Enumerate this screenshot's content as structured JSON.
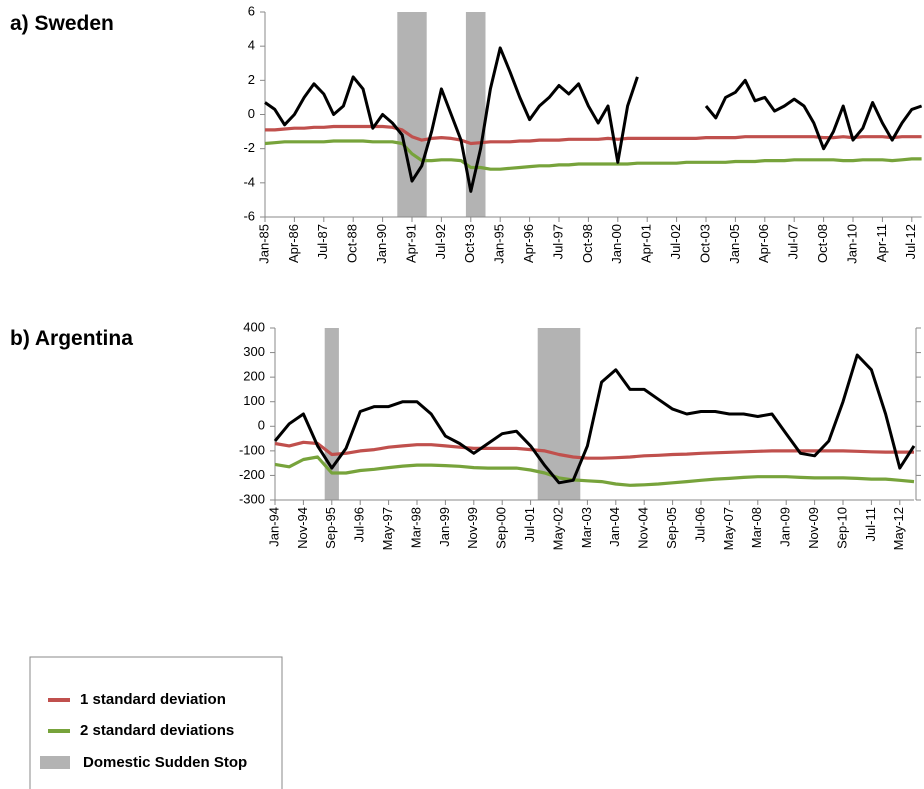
{
  "chart_data": [
    {
      "type": "line",
      "title": "a) Sweden",
      "categories": [
        "Jan-85",
        null,
        null,
        "Apr-86",
        null,
        null,
        "Jul-87",
        null,
        null,
        "Oct-88",
        null,
        null,
        "Jan-90",
        null,
        null,
        "Apr-91",
        null,
        null,
        "Jul-92",
        null,
        null,
        "Oct-93",
        null,
        null,
        "Jan-95",
        null,
        null,
        "Apr-96",
        null,
        null,
        "Jul-97",
        null,
        null,
        "Oct-98",
        null,
        null,
        "Jan-00",
        null,
        null,
        "Apr-01",
        null,
        null,
        "Jul-02",
        null,
        null,
        "Oct-03",
        null,
        null,
        "Jan-05",
        null,
        null,
        "Apr-06",
        null,
        null,
        "Jul-07",
        null,
        null,
        "Oct-08",
        null,
        null,
        "Jan-10",
        null,
        null,
        "Apr-11",
        null,
        null,
        "Jul-12",
        null
      ],
      "series": [
        {
          "color": "#000000",
          "values": [
            0.7,
            0.3,
            -0.6,
            0.0,
            1.0,
            1.8,
            1.2,
            0.0,
            0.5,
            2.2,
            1.5,
            -0.8,
            0.0,
            -0.5,
            -1.2,
            -3.9,
            -3.0,
            -1.0,
            1.5,
            0.0,
            -1.5,
            -4.5,
            -2.0,
            1.5,
            3.9,
            2.5,
            1.0,
            -0.3,
            0.5,
            1.0,
            1.7,
            1.2,
            1.8,
            0.5,
            -0.5,
            0.5,
            -2.8,
            0.5,
            2.2,
            null,
            null,
            null,
            null,
            null,
            null,
            0.5,
            -0.2,
            1.0,
            1.3,
            2.0,
            0.8,
            1.0,
            0.2,
            0.5,
            0.9,
            0.5,
            -0.5,
            -2.0,
            -1.0,
            0.5,
            -1.5,
            -0.8,
            0.7,
            -0.5,
            -1.5,
            -0.5,
            0.3,
            0.5
          ]
        },
        {
          "name": "1 standard deviation",
          "color": "#c0504d",
          "values": [
            -0.9,
            -0.9,
            -0.85,
            -0.8,
            -0.8,
            -0.75,
            -0.75,
            -0.7,
            -0.7,
            -0.7,
            -0.7,
            -0.7,
            -0.7,
            -0.75,
            -0.9,
            -1.3,
            -1.5,
            -1.4,
            -1.35,
            -1.4,
            -1.5,
            -1.7,
            -1.65,
            -1.6,
            -1.6,
            -1.6,
            -1.55,
            -1.55,
            -1.5,
            -1.5,
            -1.5,
            -1.45,
            -1.45,
            -1.45,
            -1.45,
            -1.4,
            -1.45,
            -1.4,
            -1.4,
            -1.4,
            -1.4,
            -1.4,
            -1.4,
            -1.4,
            -1.4,
            -1.35,
            -1.35,
            -1.35,
            -1.35,
            -1.3,
            -1.3,
            -1.3,
            -1.3,
            -1.3,
            -1.3,
            -1.3,
            -1.3,
            -1.35,
            -1.35,
            -1.3,
            -1.35,
            -1.3,
            -1.3,
            -1.3,
            -1.35,
            -1.3,
            -1.3,
            -1.3
          ]
        },
        {
          "name": "2 standard deviations",
          "color": "#77a33b",
          "values": [
            -1.7,
            -1.65,
            -1.6,
            -1.6,
            -1.6,
            -1.6,
            -1.6,
            -1.55,
            -1.55,
            -1.55,
            -1.55,
            -1.6,
            -1.6,
            -1.6,
            -1.7,
            -2.3,
            -2.7,
            -2.7,
            -2.65,
            -2.65,
            -2.7,
            -3.1,
            -3.1,
            -3.2,
            -3.2,
            -3.15,
            -3.1,
            -3.05,
            -3.0,
            -3.0,
            -2.95,
            -2.95,
            -2.9,
            -2.9,
            -2.9,
            -2.9,
            -2.9,
            -2.9,
            -2.85,
            -2.85,
            -2.85,
            -2.85,
            -2.85,
            -2.8,
            -2.8,
            -2.8,
            -2.8,
            -2.8,
            -2.75,
            -2.75,
            -2.75,
            -2.7,
            -2.7,
            -2.7,
            -2.65,
            -2.65,
            -2.65,
            -2.65,
            -2.65,
            -2.7,
            -2.7,
            -2.65,
            -2.65,
            -2.65,
            -2.7,
            -2.65,
            -2.6,
            -2.6
          ]
        }
      ],
      "shaded_name": "Domestic Sudden Stop",
      "shaded_color": "#b3b3b3",
      "shaded_ranges": [
        [
          14,
          16
        ],
        [
          21,
          22
        ]
      ],
      "ylim": [
        -6,
        6
      ],
      "yticks": [
        -6,
        -4,
        -2,
        0,
        2,
        4,
        6
      ]
    },
    {
      "type": "line",
      "title": "b) Argentina",
      "categories": [
        "Jan-94",
        null,
        "Nov-94",
        null,
        "Sep-95",
        null,
        "Jul-96",
        null,
        "May-97",
        null,
        "Mar-98",
        null,
        "Jan-99",
        null,
        "Nov-99",
        null,
        "Sep-00",
        null,
        "Jul-01",
        null,
        "May-02",
        null,
        "Mar-03",
        null,
        "Jan-04",
        null,
        "Nov-04",
        null,
        "Sep-05",
        null,
        "Jul-06",
        null,
        "May-07",
        null,
        "Mar-08",
        null,
        "Jan-09",
        null,
        "Nov-09",
        null,
        "Sep-10",
        null,
        "Jul-11",
        null,
        "May-12",
        null
      ],
      "series": [
        {
          "color": "#000000",
          "values": [
            -60,
            10,
            50,
            -80,
            -170,
            -90,
            60,
            80,
            80,
            100,
            100,
            50,
            -40,
            -70,
            -110,
            -70,
            -30,
            -20,
            -80,
            -160,
            -230,
            -220,
            -80,
            180,
            230,
            150,
            150,
            110,
            70,
            50,
            60,
            60,
            50,
            50,
            40,
            50,
            -30,
            -110,
            -120,
            -60,
            100,
            290,
            230,
            50,
            -170,
            -80
          ]
        },
        {
          "color": "#c0504d",
          "values": [
            -70,
            -80,
            -65,
            -70,
            -115,
            -110,
            -100,
            -95,
            -85,
            -80,
            -75,
            -75,
            -80,
            -85,
            -90,
            -90,
            -90,
            -90,
            -95,
            -100,
            -115,
            -125,
            -130,
            -130,
            -128,
            -125,
            -120,
            -118,
            -115,
            -113,
            -110,
            -108,
            -106,
            -104,
            -102,
            -100,
            -100,
            -100,
            -100,
            -100,
            -100,
            -102,
            -104,
            -105,
            -105,
            -105
          ]
        },
        {
          "color": "#77a33b",
          "values": [
            -155,
            -165,
            -135,
            -125,
            -190,
            -190,
            -180,
            -175,
            -168,
            -162,
            -158,
            -158,
            -160,
            -163,
            -168,
            -170,
            -170,
            -170,
            -178,
            -190,
            -210,
            -218,
            -222,
            -225,
            -235,
            -240,
            -238,
            -235,
            -230,
            -225,
            -220,
            -215,
            -212,
            -208,
            -205,
            -205,
            -205,
            -208,
            -210,
            -210,
            -210,
            -212,
            -215,
            -215,
            -220,
            -225
          ]
        }
      ],
      "shaded_ranges": [
        [
          4,
          4
        ],
        [
          19,
          21
        ]
      ],
      "ylim": [
        -300,
        400
      ],
      "yticks": [
        -300,
        -200,
        -100,
        0,
        100,
        200,
        300,
        400
      ]
    }
  ]
}
